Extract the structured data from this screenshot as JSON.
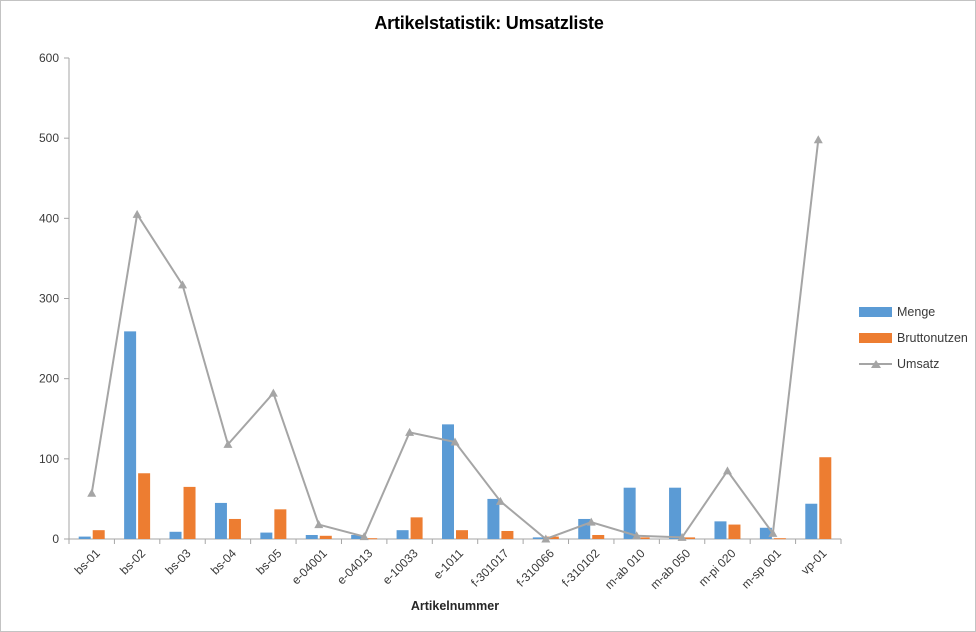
{
  "window": {
    "background": "#ffffff",
    "frame_border_color": "#c3c3c3"
  },
  "chart_data": {
    "type": "bar",
    "subtype": "grouped bars with overlaid line series (triangle markers)",
    "title": "Artikelstatistik: Umsatzliste",
    "xlabel": "Artikelnummer",
    "ylabel": "",
    "ylim": [
      0,
      600
    ],
    "yticks": [
      0,
      100,
      200,
      300,
      400,
      500,
      600
    ],
    "grid": false,
    "legend_position": "right",
    "x_tick_label_rotation": -45,
    "categories": [
      "bs-01",
      "bs-02",
      "bs-03",
      "bs-04",
      "bs-05",
      "e-04001",
      "e-04013",
      "e-10033",
      "e-1011",
      "f-301017",
      "f-310066",
      "f-310102",
      "m-ab 010",
      "m-ab 050",
      "m-pi 020",
      "m-sp 001",
      "vp-01"
    ],
    "series": [
      {
        "name": "Menge",
        "type": "bar",
        "color": "#5B9BD5",
        "values": [
          3,
          259,
          9,
          45,
          8,
          5,
          5,
          11,
          143,
          50,
          2,
          25,
          64,
          64,
          22,
          14,
          44
        ]
      },
      {
        "name": "Bruttonutzen",
        "type": "bar",
        "color": "#ED7D31",
        "values": [
          11,
          82,
          65,
          25,
          37,
          4,
          1,
          27,
          11,
          10,
          3,
          5,
          2,
          2,
          18,
          1,
          102
        ]
      },
      {
        "name": "Umsatz",
        "type": "line",
        "marker": "triangle",
        "color": "#A5A5A5",
        "values": [
          57,
          405,
          317,
          118,
          182,
          18,
          3,
          133,
          121,
          47,
          0,
          21,
          4,
          2,
          85,
          7,
          498
        ]
      }
    ],
    "style": {
      "axis_color": "#A6A6A6",
      "tick_label_color": "#3a3a3a",
      "title_color": "#000000",
      "line_width": 2
    }
  }
}
